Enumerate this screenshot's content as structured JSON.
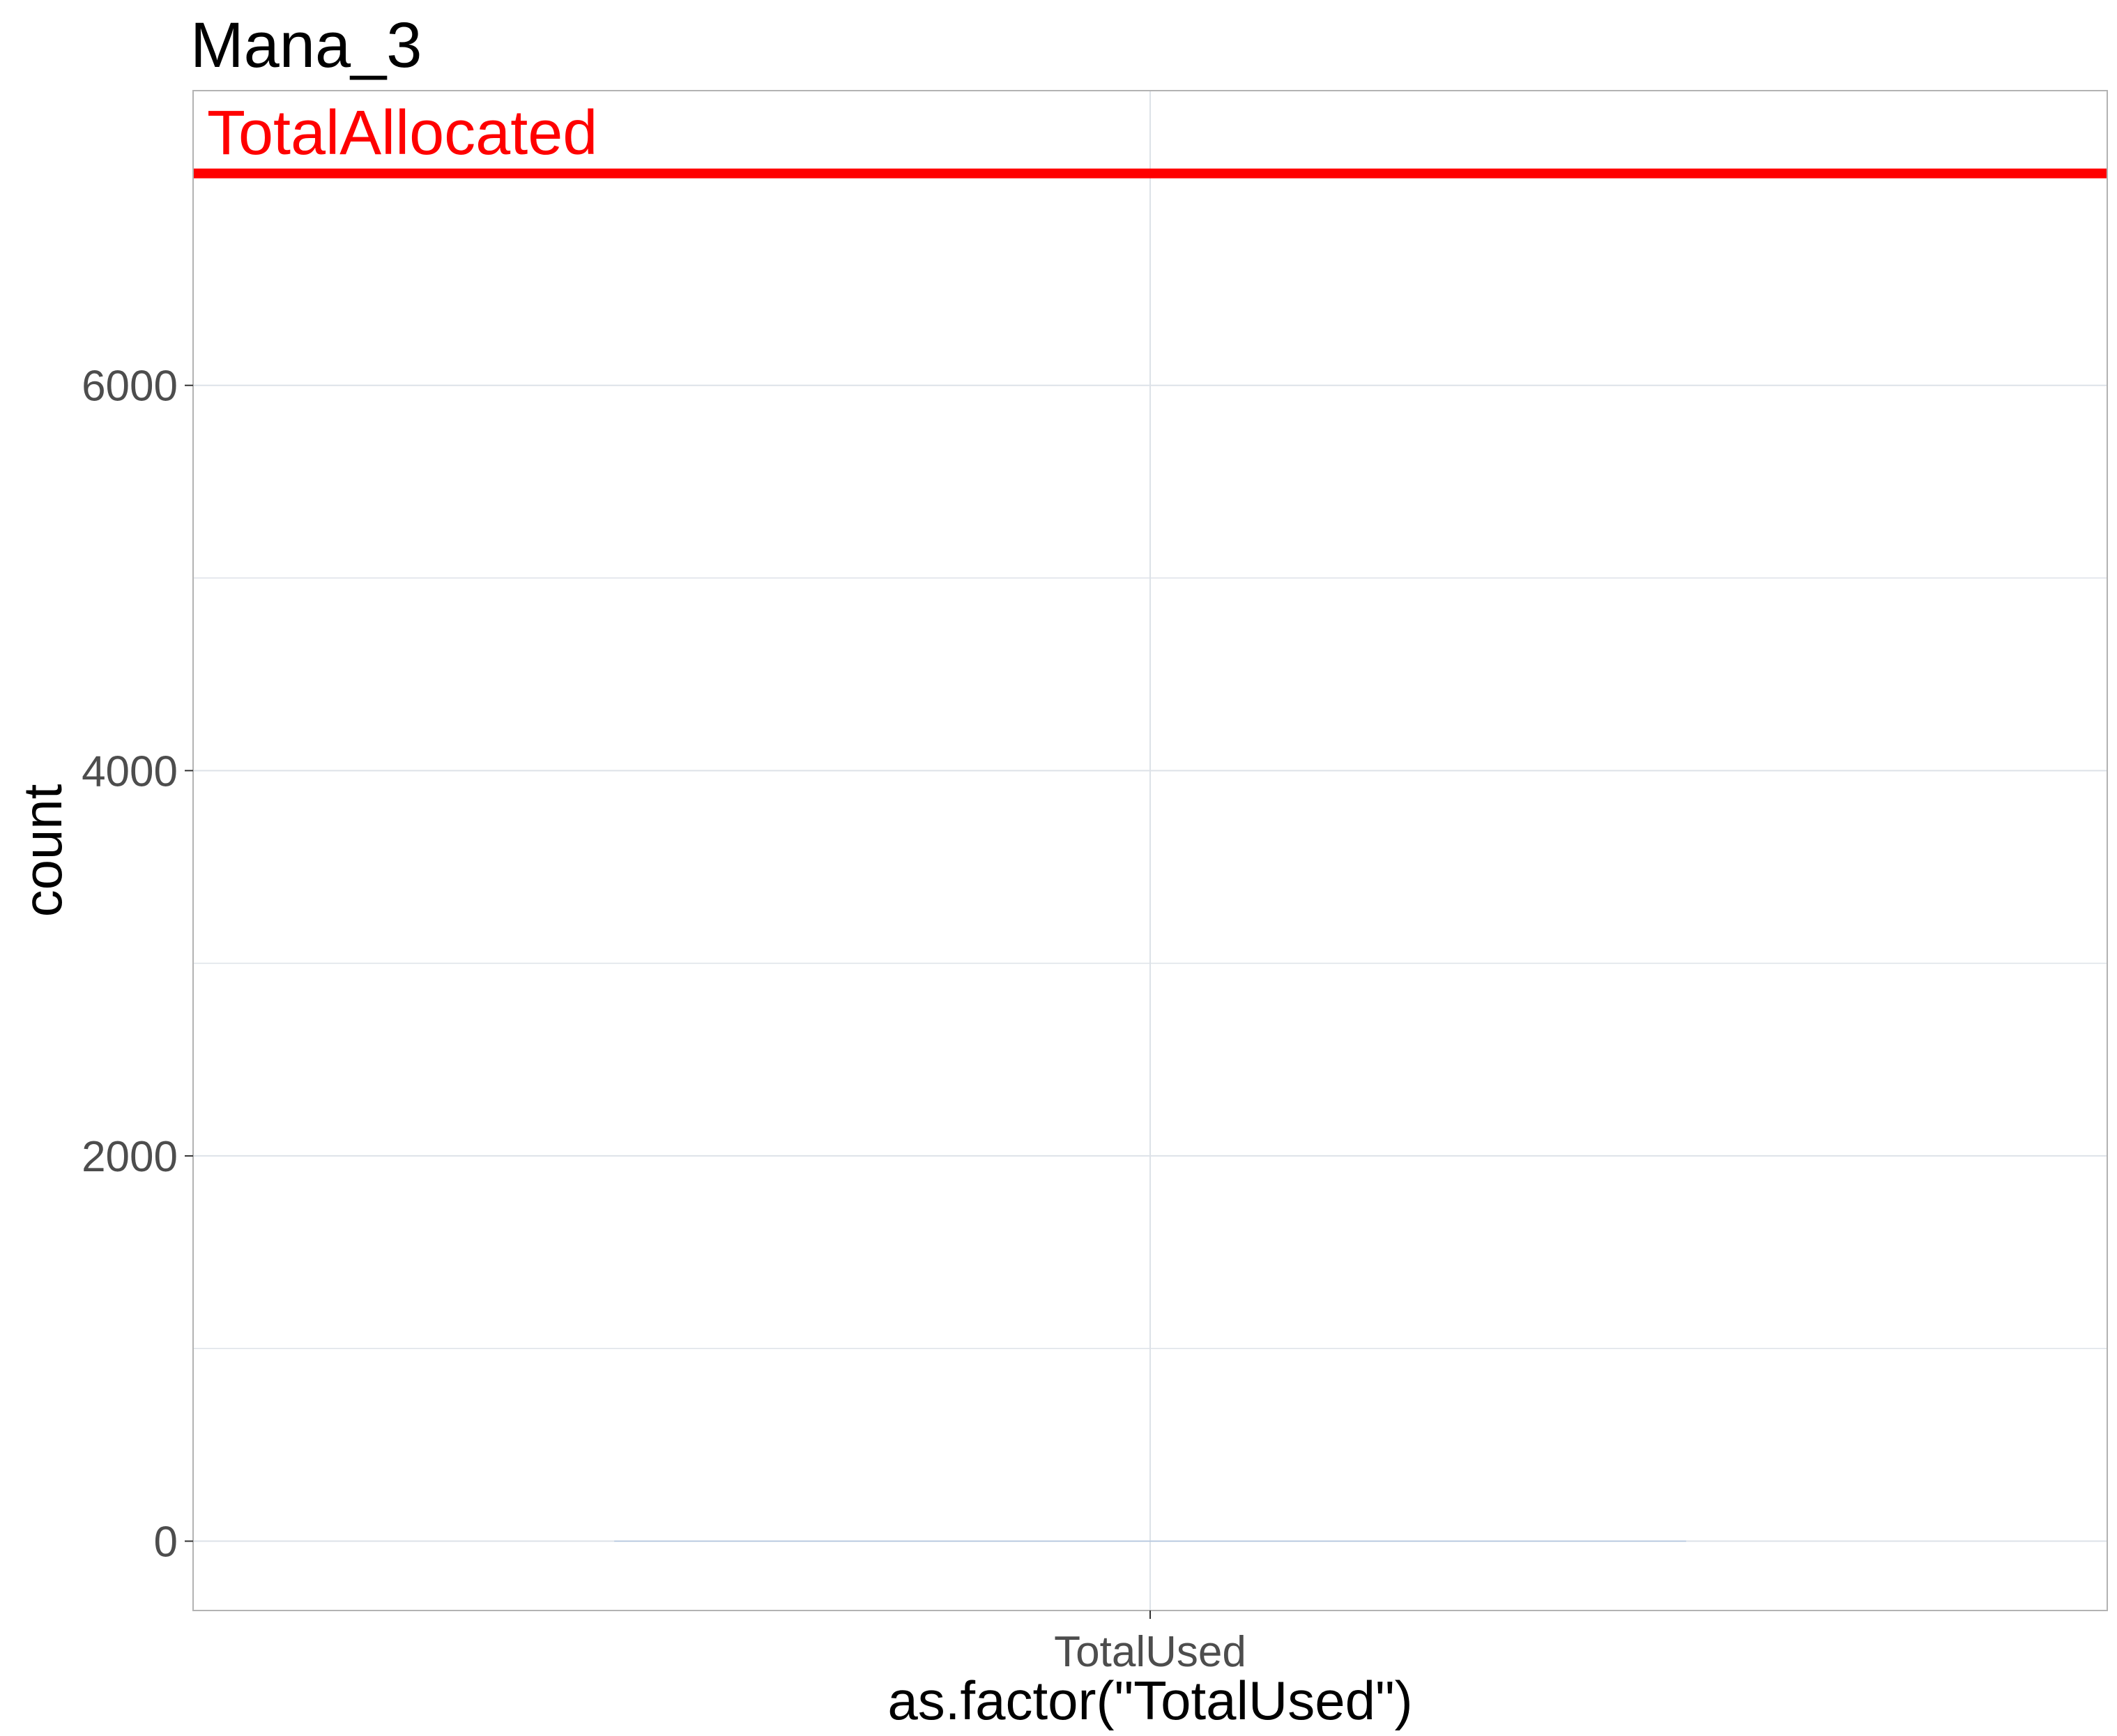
{
  "chart_data": {
    "type": "bar",
    "title": "Mana_3",
    "xlabel": "as.factor(\"TotalUsed\")",
    "ylabel": "count",
    "categories": [
      "TotalUsed"
    ],
    "values": [
      0
    ],
    "ylim": [
      -360,
      7530
    ],
    "y_ticks": [
      0,
      2000,
      4000,
      6000
    ],
    "y_tick_labels": [
      "0",
      "2000",
      "4000",
      "6000"
    ],
    "y_minor_gridlines": [
      1000,
      3000,
      5000
    ],
    "grid": true,
    "bar_color": "#b0c4de",
    "reference_line": {
      "label": "TotalAllocated",
      "value": 7100,
      "color": "#ff0000"
    },
    "colors": {
      "grid": "#dde2e8",
      "panel_border": "#b3b3b3",
      "tick_text": "#4d4d4d"
    }
  }
}
